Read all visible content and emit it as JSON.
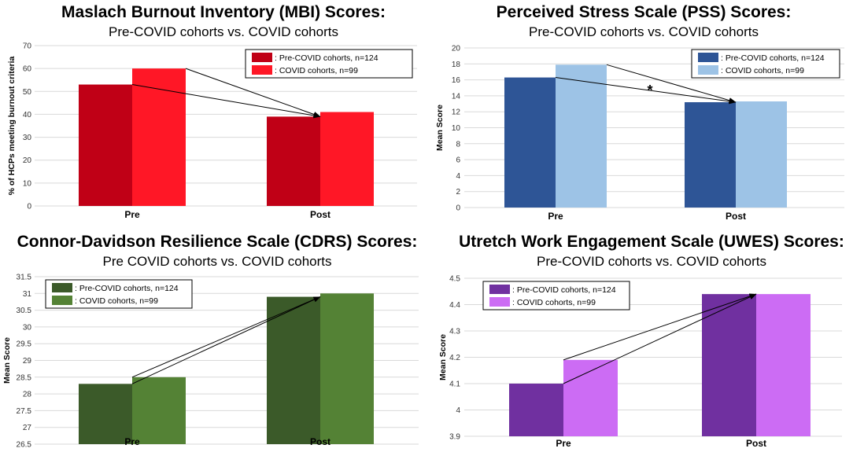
{
  "chart_data": [
    {
      "type": "bar",
      "title": "Maslach Burnout Inventory (MBI) Scores:",
      "subtitle": "Pre-COVID cohorts vs. COVID cohorts",
      "ylabel": "% of HCPs meeting burnout criteria",
      "xlabel": "",
      "ylim": [
        0,
        70
      ],
      "yticks": [
        "0",
        "10",
        "20",
        "30",
        "40",
        "50",
        "60",
        "70"
      ],
      "categories": [
        "Pre",
        "Post"
      ],
      "series": [
        {
          "name": ": Pre-COVID cohorts, n=124",
          "color": "#c00016",
          "values": [
            53,
            39
          ]
        },
        {
          "name": ": COVID cohorts, n=99",
          "color": "#ff1726",
          "values": [
            60,
            41
          ]
        }
      ],
      "legend_position": "top-right",
      "annotation": ""
    },
    {
      "type": "bar",
      "title": "Perceived Stress Scale (PSS) Scores:",
      "subtitle": "Pre-COVID cohorts vs. COVID cohorts",
      "ylabel": "Mean Score",
      "xlabel": "",
      "ylim": [
        0,
        20
      ],
      "yticks": [
        "0",
        "2",
        "4",
        "6",
        "8",
        "10",
        "12",
        "14",
        "16",
        "18",
        "20"
      ],
      "categories": [
        "Pre",
        "Post"
      ],
      "series": [
        {
          "name": ": Pre-COVID cohorts, n=124",
          "color": "#2e5596",
          "values": [
            16.3,
            13.2
          ]
        },
        {
          "name": ": COVID cohorts, n=99",
          "color": "#9dc3e6",
          "values": [
            17.9,
            13.3
          ]
        }
      ],
      "legend_position": "top-right",
      "annotation": "*"
    },
    {
      "type": "bar",
      "title": "Connor-Davidson Resilience Scale (CDRS) Scores:",
      "subtitle": "Pre COVID cohorts vs. COVID cohorts",
      "ylabel": "Mean Score",
      "xlabel": "",
      "ylim": [
        26.5,
        31.5
      ],
      "yticks": [
        "26.5",
        "27",
        "27.5",
        "28",
        "28.5",
        "29",
        "29.5",
        "30",
        "30.5",
        "31",
        "31.5"
      ],
      "categories": [
        "Pre",
        "Post"
      ],
      "series": [
        {
          "name": ": Pre-COVID cohorts, n=124",
          "color": "#3b5a29",
          "values": [
            28.3,
            30.9
          ]
        },
        {
          "name": ": COVID cohorts, n=99",
          "color": "#548235",
          "values": [
            28.5,
            31.0
          ]
        }
      ],
      "legend_position": "top-left",
      "annotation": ""
    },
    {
      "type": "bar",
      "title": "Utretch Work Engagement Scale (UWES) Scores:",
      "subtitle": "Pre-COVID cohorts vs. COVID cohorts",
      "ylabel": "Mean Score",
      "xlabel": "",
      "ylim": [
        3.9,
        4.5
      ],
      "yticks": [
        "3.9",
        "4",
        "4.1",
        "4.2",
        "4.3",
        "4.4",
        "4.5"
      ],
      "categories": [
        "Pre",
        "Post"
      ],
      "series": [
        {
          "name": ": Pre-COVID cohorts, n=124",
          "color": "#7030a0",
          "values": [
            4.1,
            4.44
          ]
        },
        {
          "name": ": COVID cohorts, n=99",
          "color": "#cc6cf4",
          "values": [
            4.19,
            4.44
          ]
        }
      ],
      "legend_position": "top-left",
      "annotation": ""
    }
  ]
}
